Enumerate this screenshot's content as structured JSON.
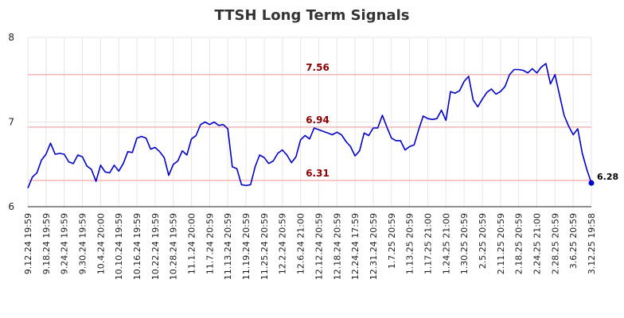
{
  "chart_data": {
    "type": "line",
    "title": "TTSH Long Term Signals",
    "xlabel": "",
    "ylabel": "",
    "ylim": [
      6,
      8
    ],
    "yticks": [
      6,
      7,
      8
    ],
    "grid": true,
    "line_color": "#0000cc",
    "level_color": "#f4b6b6",
    "level_label_color": "#8b0000",
    "x_tick_labels": [
      "9.12.24 19:59",
      "9.18.24 19:59",
      "9.24.24 19:59",
      "9.30.24 19:59",
      "10.4.24 20:00",
      "10.10.24 19:59",
      "10.16.24 19:59",
      "10.22.24 19:59",
      "10.28.24 19:59",
      "11.1.24 20:00",
      "11.7.24 20:59",
      "11.13.24 20:59",
      "11.19.24 20:59",
      "11.25.24 20:59",
      "12.2.24 20:59",
      "12.6.24 21:00",
      "12.12.24 20:59",
      "12.18.24 20:59",
      "12.24.24 17:59",
      "12.31.24 20:59",
      "1.7.25 20:59",
      "1.13.25 20:59",
      "1.17.25 21:00",
      "1.24.25 21:00",
      "1.30.25 20:59",
      "2.5.25 20:59",
      "2.11.25 20:59",
      "2.18.25 20:59",
      "2.24.25 21:00",
      "2.28.25 20:59",
      "3.6.25 20:59",
      "3.12.25 19:58"
    ],
    "levels": [
      {
        "value": 7.56,
        "label": "7.56"
      },
      {
        "value": 6.94,
        "label": "6.94"
      },
      {
        "value": 6.31,
        "label": "6.31"
      }
    ],
    "last_value_label": "6.28",
    "series": [
      {
        "values": [
          6.22,
          6.35,
          6.4,
          6.55,
          6.62,
          6.75,
          6.62,
          6.63,
          6.62,
          6.53,
          6.51,
          6.61,
          6.59,
          6.48,
          6.44,
          6.3,
          6.49,
          6.41,
          6.4,
          6.49,
          6.42,
          6.51,
          6.65,
          6.64,
          6.81,
          6.83,
          6.81,
          6.68,
          6.7,
          6.65,
          6.58,
          6.37,
          6.5,
          6.54,
          6.66,
          6.61,
          6.8,
          6.84,
          6.97,
          7.0,
          6.97,
          7.0,
          6.96,
          6.97,
          6.92,
          6.47,
          6.45,
          6.26,
          6.25,
          6.26,
          6.47,
          6.61,
          6.58,
          6.51,
          6.54,
          6.63,
          6.67,
          6.61,
          6.52,
          6.59,
          6.79,
          6.84,
          6.8,
          6.93,
          6.91,
          6.89,
          6.87,
          6.85,
          6.88,
          6.85,
          6.77,
          6.71,
          6.6,
          6.66,
          6.87,
          6.84,
          6.93,
          6.93,
          7.08,
          6.94,
          6.81,
          6.78,
          6.78,
          6.67,
          6.71,
          6.73,
          6.91,
          7.07,
          7.04,
          7.03,
          7.04,
          7.14,
          7.02,
          7.36,
          7.34,
          7.37,
          7.48,
          7.54,
          7.26,
          7.18,
          7.27,
          7.35,
          7.39,
          7.33,
          7.36,
          7.42,
          7.56,
          7.62,
          7.62,
          7.61,
          7.58,
          7.63,
          7.58,
          7.65,
          7.69,
          7.45,
          7.56,
          7.32,
          7.08,
          6.95,
          6.85,
          6.92,
          6.63,
          6.44,
          6.28
        ]
      }
    ]
  }
}
